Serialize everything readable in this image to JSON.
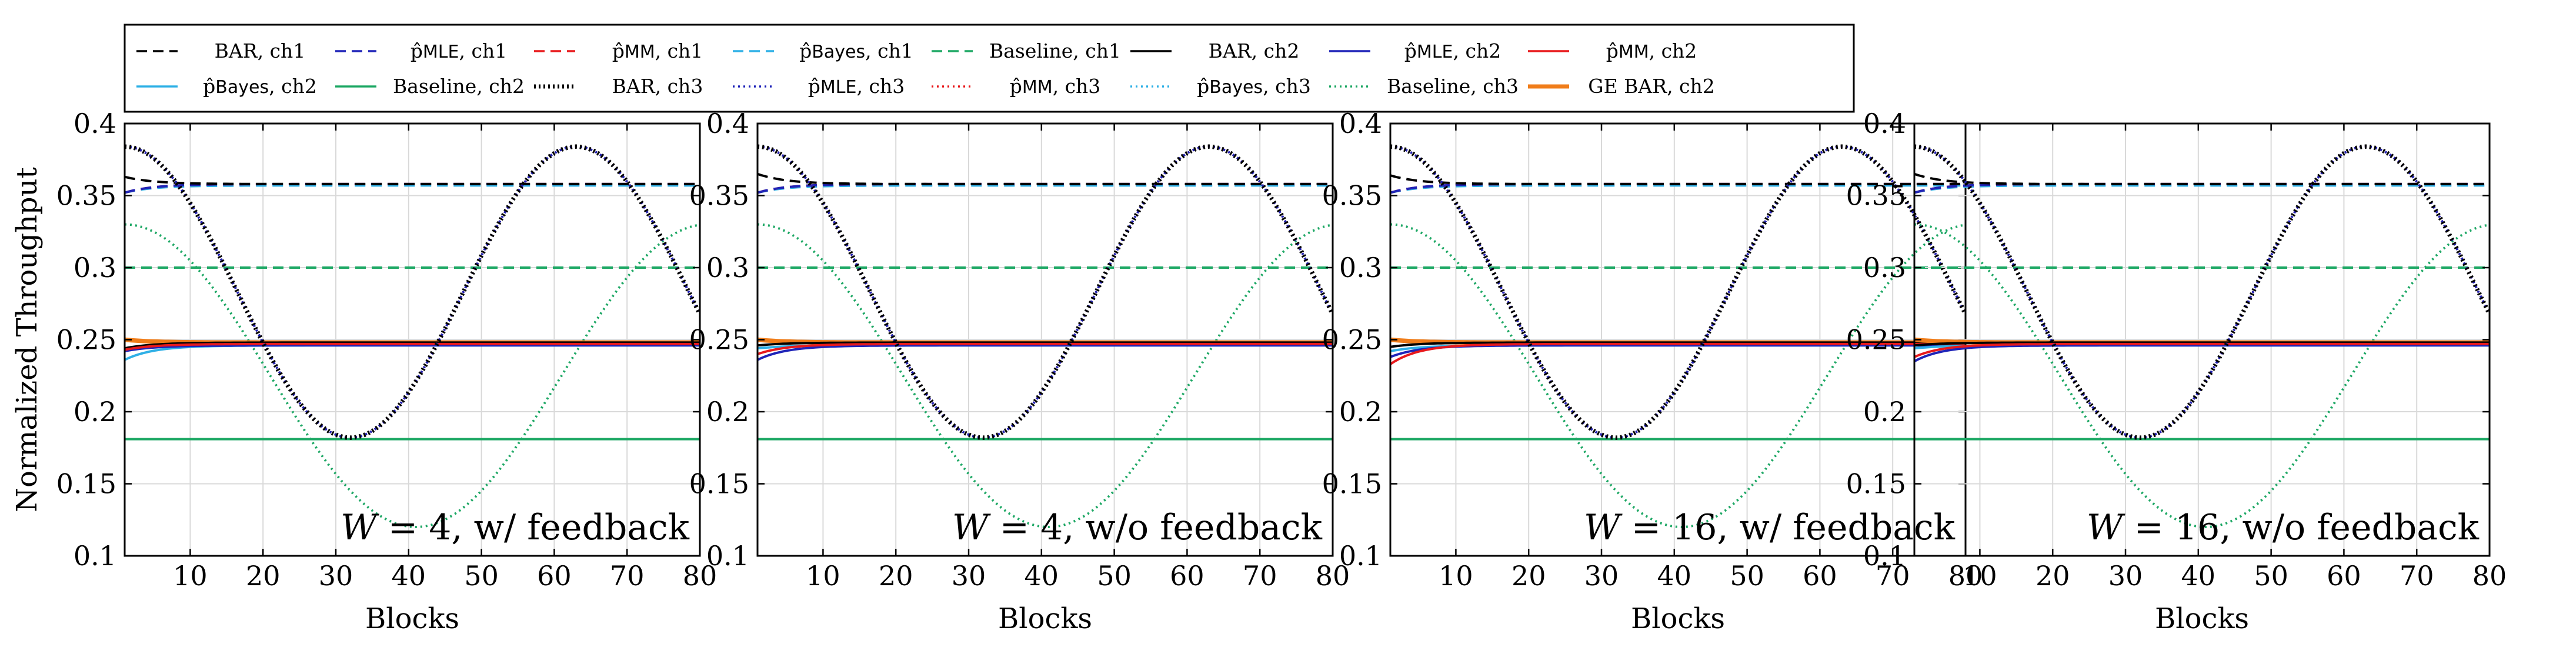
{
  "legend": {
    "entries": [
      {
        "label": "BAR, ch1",
        "color": "#000000",
        "style": "dashed",
        "weight": "normal"
      },
      {
        "label": "p̂MLE, ch1",
        "color": "#1f24b8",
        "style": "dashed",
        "weight": "normal"
      },
      {
        "label": "p̂MM, ch1",
        "color": "#e8191c",
        "style": "dashed",
        "weight": "normal"
      },
      {
        "label": "p̂Bayes, ch1",
        "color": "#2fb0e6",
        "style": "dashed",
        "weight": "normal"
      },
      {
        "label": "Baseline, ch1",
        "color": "#1ea865",
        "style": "dashed",
        "weight": "normal"
      },
      {
        "label": "BAR, ch2",
        "color": "#000000",
        "style": "solid",
        "weight": "normal"
      },
      {
        "label": "p̂MLE, ch2",
        "color": "#1f24b8",
        "style": "solid",
        "weight": "normal"
      },
      {
        "label": "p̂MM, ch2",
        "color": "#e8191c",
        "style": "solid",
        "weight": "normal"
      },
      {
        "label": "p̂Bayes, ch2",
        "color": "#2fb0e6",
        "style": "solid",
        "weight": "normal"
      },
      {
        "label": "Baseline, ch2",
        "color": "#1ea865",
        "style": "solid",
        "weight": "normal"
      },
      {
        "label": "BAR, ch3",
        "color": "#000000",
        "style": "dotted",
        "weight": "thick"
      },
      {
        "label": "p̂MLE, ch3",
        "color": "#1f24b8",
        "style": "dotted",
        "weight": "normal"
      },
      {
        "label": "p̂MM, ch3",
        "color": "#e8191c",
        "style": "dotted",
        "weight": "normal"
      },
      {
        "label": "p̂Bayes, ch3",
        "color": "#2fb0e6",
        "style": "dotted",
        "weight": "normal"
      },
      {
        "label": "Baseline, ch3",
        "color": "#1ea865",
        "style": "dotted",
        "weight": "normal"
      },
      {
        "label": "GE BAR, ch2",
        "color": "#f07d1a",
        "style": "solid",
        "weight": "thick"
      }
    ]
  },
  "chart_data": [
    {
      "type": "line",
      "title": "W = 4, w/ feedback",
      "xlabel": "Blocks",
      "ylabel": "Normalized Throughput",
      "xlim": [
        1,
        80
      ],
      "ylim": [
        0.1,
        0.4
      ],
      "xticks": [
        10,
        20,
        30,
        40,
        50,
        60,
        70,
        80
      ],
      "yticks": [
        0.1,
        0.15,
        0.2,
        0.25,
        0.3,
        0.35,
        0.4
      ],
      "series": [
        {
          "name": "BAR, ch1",
          "start": 0.363,
          "settle": 0.358
        },
        {
          "name": "p̂MLE, ch1",
          "start": 0.352,
          "settle": 0.358
        },
        {
          "name": "p̂MM, ch1",
          "start": 0.352,
          "settle": 0.358
        },
        {
          "name": "p̂Bayes, ch1",
          "start": 0.352,
          "settle": 0.357
        },
        {
          "name": "Baseline, ch1",
          "constant": 0.3
        },
        {
          "name": "BAR, ch2",
          "start": 0.244,
          "settle": 0.248
        },
        {
          "name": "p̂MLE, ch2",
          "start": 0.242,
          "settle": 0.246
        },
        {
          "name": "p̂MM, ch2",
          "start": 0.243,
          "settle": 0.247
        },
        {
          "name": "p̂Bayes, ch2",
          "start": 0.236,
          "settle": 0.246
        },
        {
          "name": "Baseline, ch2",
          "constant": 0.181
        },
        {
          "name": "BAR, ch3",
          "cosine": {
            "mean": 0.283,
            "amplitude": 0.101,
            "period": 62
          }
        },
        {
          "name": "p̂MLE, ch3",
          "cosine": {
            "mean": 0.283,
            "amplitude": 0.101,
            "period": 62
          }
        },
        {
          "name": "p̂MM, ch3",
          "cosine": {
            "mean": 0.283,
            "amplitude": 0.101,
            "period": 62
          }
        },
        {
          "name": "p̂Bayes, ch3",
          "cosine": {
            "mean": 0.283,
            "amplitude": 0.101,
            "period": 62
          }
        },
        {
          "name": "Baseline, ch3",
          "cosine": {
            "mean": 0.225,
            "amplitude": 0.105,
            "period": 80
          }
        },
        {
          "name": "GE BAR, ch2",
          "start": 0.25,
          "settle": 0.248
        }
      ]
    },
    {
      "type": "line",
      "title": "W = 4, w/o feedback",
      "xlabel": "Blocks",
      "ylabel": "",
      "xlim": [
        1,
        80
      ],
      "ylim": [
        0.1,
        0.4
      ],
      "xticks": [
        10,
        20,
        30,
        40,
        50,
        60,
        70,
        80
      ],
      "yticks": [
        0.1,
        0.15,
        0.2,
        0.25,
        0.3,
        0.35,
        0.4
      ],
      "series": [
        {
          "name": "BAR, ch1",
          "start": 0.365,
          "settle": 0.358
        },
        {
          "name": "p̂MLE, ch1",
          "start": 0.352,
          "settle": 0.358
        },
        {
          "name": "p̂MM, ch1",
          "start": 0.352,
          "settle": 0.358
        },
        {
          "name": "p̂Bayes, ch1",
          "start": 0.352,
          "settle": 0.357
        },
        {
          "name": "Baseline, ch1",
          "constant": 0.3
        },
        {
          "name": "BAR, ch2",
          "start": 0.246,
          "settle": 0.248
        },
        {
          "name": "p̂MLE, ch2",
          "start": 0.236,
          "settle": 0.246
        },
        {
          "name": "p̂MM, ch2",
          "start": 0.24,
          "settle": 0.247
        },
        {
          "name": "p̂Bayes, ch2",
          "start": 0.244,
          "settle": 0.246
        },
        {
          "name": "Baseline, ch2",
          "constant": 0.181
        },
        {
          "name": "BAR, ch3",
          "cosine": {
            "mean": 0.283,
            "amplitude": 0.101,
            "period": 62
          }
        },
        {
          "name": "p̂MLE, ch3",
          "cosine": {
            "mean": 0.283,
            "amplitude": 0.101,
            "period": 62
          }
        },
        {
          "name": "p̂MM, ch3",
          "cosine": {
            "mean": 0.283,
            "amplitude": 0.101,
            "period": 62
          }
        },
        {
          "name": "p̂Bayes, ch3",
          "cosine": {
            "mean": 0.283,
            "amplitude": 0.101,
            "period": 62
          }
        },
        {
          "name": "Baseline, ch3",
          "cosine": {
            "mean": 0.225,
            "amplitude": 0.105,
            "period": 80
          }
        },
        {
          "name": "GE BAR, ch2",
          "start": 0.25,
          "settle": 0.248
        }
      ]
    },
    {
      "type": "line",
      "title": "W = 16, w/ feedback",
      "xlabel": "Blocks",
      "ylabel": "",
      "xlim": [
        1,
        80
      ],
      "ylim": [
        0.1,
        0.4
      ],
      "xticks": [
        10,
        20,
        30,
        40,
        50,
        60,
        70,
        80
      ],
      "yticks": [
        0.1,
        0.15,
        0.2,
        0.25,
        0.3,
        0.35,
        0.4
      ],
      "series": [
        {
          "name": "BAR, ch1",
          "start": 0.364,
          "settle": 0.358
        },
        {
          "name": "p̂MLE, ch1",
          "start": 0.352,
          "settle": 0.358
        },
        {
          "name": "p̂MM, ch1",
          "start": 0.352,
          "settle": 0.358
        },
        {
          "name": "p̂Bayes, ch1",
          "start": 0.352,
          "settle": 0.357
        },
        {
          "name": "Baseline, ch1",
          "constant": 0.3
        },
        {
          "name": "BAR, ch2",
          "start": 0.245,
          "settle": 0.248
        },
        {
          "name": "p̂MLE, ch2",
          "start": 0.238,
          "settle": 0.246
        },
        {
          "name": "p̂MM, ch2",
          "start": 0.233,
          "settle": 0.247
        },
        {
          "name": "p̂Bayes, ch2",
          "start": 0.242,
          "settle": 0.246
        },
        {
          "name": "Baseline, ch2",
          "constant": 0.181
        },
        {
          "name": "BAR, ch3",
          "cosine": {
            "mean": 0.283,
            "amplitude": 0.101,
            "period": 62
          }
        },
        {
          "name": "p̂MLE, ch3",
          "cosine": {
            "mean": 0.283,
            "amplitude": 0.101,
            "period": 62
          }
        },
        {
          "name": "p̂MM, ch3",
          "cosine": {
            "mean": 0.283,
            "amplitude": 0.101,
            "period": 62
          }
        },
        {
          "name": "p̂Bayes, ch3",
          "cosine": {
            "mean": 0.283,
            "amplitude": 0.101,
            "period": 62
          }
        },
        {
          "name": "Baseline, ch3",
          "cosine": {
            "mean": 0.225,
            "amplitude": 0.105,
            "period": 80
          }
        },
        {
          "name": "GE BAR, ch2",
          "start": 0.25,
          "settle": 0.248
        }
      ]
    },
    {
      "type": "line",
      "title": "W = 16, w/o feedback",
      "xlabel": "Blocks",
      "ylabel": "",
      "xlim": [
        1,
        80
      ],
      "ylim": [
        0.1,
        0.4
      ],
      "xticks": [
        10,
        20,
        30,
        40,
        50,
        60,
        70,
        80
      ],
      "yticks": [
        0.1,
        0.15,
        0.2,
        0.25,
        0.3,
        0.35,
        0.4
      ],
      "series": [
        {
          "name": "BAR, ch1",
          "start": 0.365,
          "settle": 0.358
        },
        {
          "name": "p̂MLE, ch1",
          "start": 0.352,
          "settle": 0.358
        },
        {
          "name": "p̂MM, ch1",
          "start": 0.352,
          "settle": 0.358
        },
        {
          "name": "p̂Bayes, ch1",
          "start": 0.352,
          "settle": 0.357
        },
        {
          "name": "Baseline, ch1",
          "constant": 0.3
        },
        {
          "name": "BAR, ch2",
          "start": 0.246,
          "settle": 0.248
        },
        {
          "name": "p̂MLE, ch2",
          "start": 0.235,
          "settle": 0.246
        },
        {
          "name": "p̂MM, ch2",
          "start": 0.238,
          "settle": 0.247
        },
        {
          "name": "p̂Bayes, ch2",
          "start": 0.244,
          "settle": 0.246
        },
        {
          "name": "Baseline, ch2",
          "constant": 0.181
        },
        {
          "name": "BAR, ch3",
          "cosine": {
            "mean": 0.283,
            "amplitude": 0.101,
            "period": 62
          }
        },
        {
          "name": "p̂MLE, ch3",
          "cosine": {
            "mean": 0.283,
            "amplitude": 0.101,
            "period": 62
          }
        },
        {
          "name": "p̂MM, ch3",
          "cosine": {
            "mean": 0.283,
            "amplitude": 0.101,
            "period": 62
          }
        },
        {
          "name": "p̂Bayes, ch3",
          "cosine": {
            "mean": 0.283,
            "amplitude": 0.101,
            "period": 62
          }
        },
        {
          "name": "Baseline, ch3",
          "cosine": {
            "mean": 0.225,
            "amplitude": 0.105,
            "period": 80
          }
        },
        {
          "name": "GE BAR, ch2",
          "start": 0.25,
          "settle": 0.248
        }
      ]
    }
  ]
}
